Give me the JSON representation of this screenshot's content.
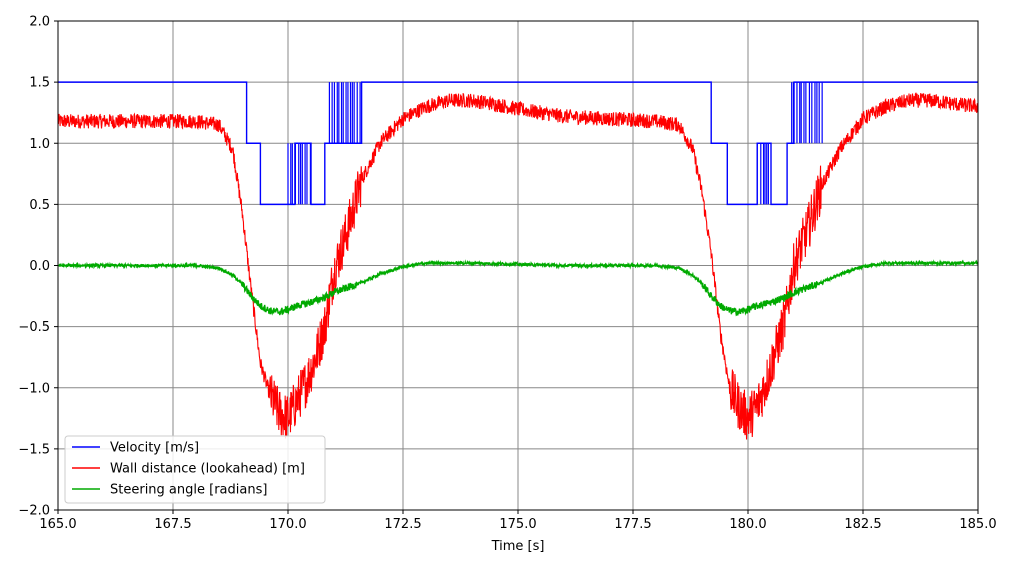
{
  "chart_data": {
    "type": "line",
    "xlabel": "Time [s]",
    "ylabel": "",
    "title": "",
    "xlim": [
      165.0,
      185.0
    ],
    "ylim": [
      -2.0,
      2.0
    ],
    "grid": true,
    "legend_placement": "lower-left",
    "x_ticks": [
      "165.0",
      "167.5",
      "170.0",
      "172.5",
      "175.0",
      "177.5",
      "180.0",
      "182.5",
      "185.0"
    ],
    "y_ticks": [
      "2.0",
      "1.5",
      "1.0",
      "0.5",
      "0.0",
      "−0.5",
      "−1.0",
      "−1.5",
      "−2.0"
    ],
    "series": [
      {
        "name": "Velocity [m/s]",
        "color": "#0000ff",
        "style": "step",
        "x": [
          165.0,
          169.0,
          169.1,
          169.4,
          170.0,
          170.15,
          170.5,
          170.8,
          170.9,
          171.6,
          172.5,
          179.2,
          179.55,
          179.9,
          180.2,
          180.5,
          180.85,
          181.0,
          181.65,
          185.0
        ],
        "values": [
          1.5,
          1.5,
          1.0,
          0.5,
          0.5,
          1.0,
          0.5,
          1.0,
          1.0,
          1.5,
          1.5,
          1.0,
          0.5,
          0.5,
          1.0,
          0.5,
          1.0,
          1.5,
          1.5,
          1.5
        ]
      },
      {
        "name": "Wall distance (lookahead) [m]",
        "color": "#ff0000",
        "style": "noisy",
        "x": [
          165.0,
          166.0,
          167.0,
          168.0,
          168.5,
          168.8,
          169.0,
          169.2,
          169.4,
          169.6,
          169.8,
          170.0,
          170.2,
          170.4,
          170.6,
          170.8,
          171.0,
          171.3,
          171.6,
          172.0,
          172.5,
          173.0,
          173.5,
          174.0,
          174.5,
          175.0,
          176.0,
          177.0,
          178.0,
          178.5,
          178.8,
          179.0,
          179.2,
          179.4,
          179.6,
          179.8,
          180.0,
          180.2,
          180.4,
          180.6,
          180.8,
          181.0,
          181.3,
          181.6,
          182.0,
          182.5,
          183.0,
          183.5,
          184.0,
          184.5,
          185.0
        ],
        "values": [
          1.18,
          1.18,
          1.18,
          1.18,
          1.15,
          0.95,
          0.45,
          -0.2,
          -0.8,
          -1.05,
          -1.2,
          -1.25,
          -1.1,
          -0.95,
          -0.75,
          -0.5,
          -0.05,
          0.3,
          0.7,
          1.0,
          1.2,
          1.3,
          1.35,
          1.35,
          1.32,
          1.28,
          1.22,
          1.2,
          1.18,
          1.15,
          0.95,
          0.6,
          0.1,
          -0.55,
          -1.0,
          -1.15,
          -1.25,
          -1.15,
          -0.95,
          -0.7,
          -0.45,
          0.0,
          0.3,
          0.65,
          0.95,
          1.2,
          1.3,
          1.35,
          1.35,
          1.32,
          1.3
        ]
      },
      {
        "name": "Steering angle [radians]",
        "color": "#00aa00",
        "style": "noisy",
        "x": [
          165.0,
          166.0,
          167.0,
          168.0,
          168.5,
          168.8,
          169.0,
          169.2,
          169.4,
          169.6,
          169.8,
          170.0,
          170.2,
          170.5,
          170.8,
          171.0,
          171.3,
          171.6,
          172.0,
          172.5,
          173.0,
          174.0,
          175.0,
          176.0,
          177.0,
          178.0,
          178.5,
          178.8,
          179.0,
          179.2,
          179.4,
          179.6,
          179.8,
          180.0,
          180.2,
          180.5,
          180.8,
          181.0,
          181.3,
          181.6,
          182.0,
          182.5,
          183.0,
          184.0,
          185.0
        ],
        "values": [
          0.0,
          0.0,
          0.0,
          0.0,
          -0.02,
          -0.08,
          -0.15,
          -0.25,
          -0.33,
          -0.37,
          -0.38,
          -0.36,
          -0.33,
          -0.3,
          -0.26,
          -0.22,
          -0.18,
          -0.14,
          -0.07,
          -0.01,
          0.02,
          0.02,
          0.01,
          0.0,
          0.0,
          0.0,
          -0.02,
          -0.08,
          -0.15,
          -0.25,
          -0.33,
          -0.37,
          -0.38,
          -0.36,
          -0.33,
          -0.3,
          -0.26,
          -0.22,
          -0.18,
          -0.14,
          -0.07,
          -0.01,
          0.02,
          0.02,
          0.02
        ]
      }
    ]
  }
}
